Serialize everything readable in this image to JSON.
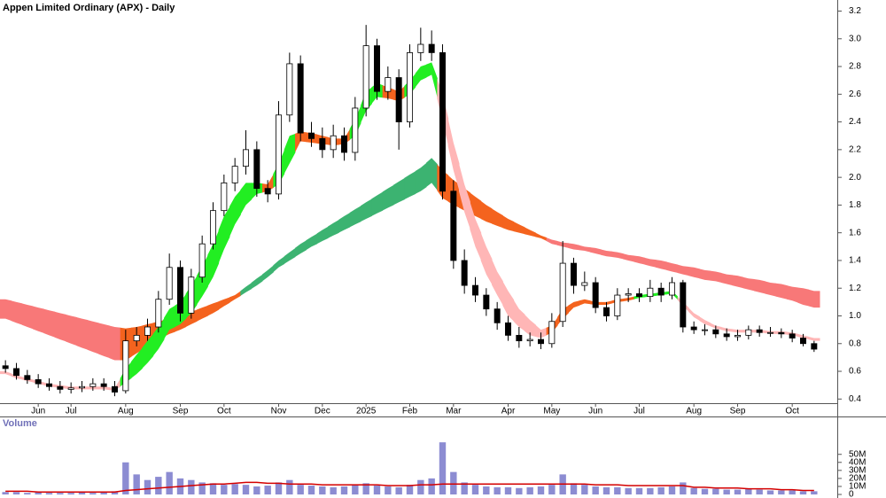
{
  "chart_data": [
    {
      "type": "candlestick",
      "title": "Appen Limited Ordinary (APX) - Daily",
      "categories": [
        null,
        null,
        null,
        "Jun",
        null,
        null,
        "Jul",
        null,
        null,
        null,
        null,
        "Aug",
        null,
        null,
        null,
        null,
        "Sep",
        null,
        null,
        null,
        "Oct",
        null,
        null,
        null,
        null,
        "Nov",
        null,
        null,
        null,
        "Dec",
        null,
        null,
        null,
        "2025",
        null,
        null,
        null,
        "Feb",
        null,
        null,
        null,
        "Mar",
        null,
        null,
        null,
        null,
        "Apr",
        null,
        null,
        null,
        "May",
        null,
        null,
        null,
        "Jun",
        null,
        null,
        null,
        "Jul",
        null,
        null,
        null,
        null,
        "Aug",
        null,
        null,
        null,
        "Sep",
        null,
        null,
        null,
        null,
        "Oct",
        null,
        null
      ],
      "open": [
        0.64,
        0.62,
        0.57,
        0.54,
        0.51,
        0.49,
        0.47,
        0.48,
        0.49,
        0.51,
        0.49,
        0.46,
        0.82,
        0.86,
        0.92,
        1.12,
        1.35,
        1.02,
        1.28,
        1.52,
        1.76,
        1.96,
        2.08,
        2.2,
        1.92,
        1.88,
        2.45,
        2.82,
        2.32,
        2.28,
        2.2,
        2.3,
        2.18,
        2.5,
        2.95,
        2.62,
        2.72,
        2.4,
        2.9,
        2.96,
        2.9,
        1.9,
        1.4,
        1.22,
        1.15,
        1.05,
        0.95,
        0.86,
        0.82,
        0.83,
        0.8,
        0.96,
        1.38,
        1.22,
        1.24,
        1.06,
        1.0,
        1.15,
        1.16,
        1.14,
        1.2,
        1.15,
        1.24,
        0.92,
        0.9,
        0.9,
        0.87,
        0.85,
        0.86,
        0.9,
        0.88,
        0.88,
        0.87,
        0.84,
        0.8
      ],
      "high": [
        0.68,
        0.66,
        0.61,
        0.58,
        0.55,
        0.53,
        0.52,
        0.53,
        0.55,
        0.55,
        0.53,
        0.9,
        0.92,
        0.98,
        1.18,
        1.45,
        1.4,
        1.34,
        1.58,
        1.82,
        2.02,
        2.14,
        2.34,
        2.26,
        1.98,
        2.55,
        2.9,
        2.88,
        2.4,
        2.36,
        2.38,
        2.36,
        2.58,
        3.1,
        3.0,
        2.8,
        2.78,
        2.96,
        3.08,
        3.06,
        2.96,
        1.98,
        1.48,
        1.28,
        1.2,
        1.1,
        1.0,
        0.92,
        0.88,
        0.88,
        1.02,
        1.54,
        1.42,
        1.32,
        1.28,
        1.1,
        1.2,
        1.2,
        1.2,
        1.26,
        1.24,
        1.28,
        1.26,
        0.96,
        0.94,
        0.93,
        0.91,
        0.9,
        0.93,
        0.93,
        0.92,
        0.91,
        0.9,
        0.87,
        0.82
      ],
      "low": [
        0.59,
        0.54,
        0.51,
        0.48,
        0.46,
        0.44,
        0.44,
        0.45,
        0.46,
        0.46,
        0.42,
        0.44,
        0.78,
        0.82,
        0.88,
        1.08,
        0.96,
        0.98,
        1.24,
        1.48,
        1.72,
        1.9,
        2.02,
        1.86,
        1.82,
        1.84,
        2.4,
        2.26,
        2.22,
        2.14,
        2.14,
        2.12,
        2.12,
        2.44,
        2.56,
        2.56,
        2.2,
        2.36,
        2.84,
        2.84,
        1.84,
        1.34,
        1.16,
        1.1,
        1.0,
        0.9,
        0.82,
        0.77,
        0.78,
        0.76,
        0.77,
        0.92,
        1.16,
        1.18,
        1.02,
        0.96,
        0.97,
        1.1,
        1.1,
        1.1,
        1.1,
        1.12,
        0.88,
        0.87,
        0.86,
        0.84,
        0.82,
        0.82,
        0.83,
        0.85,
        0.85,
        0.84,
        0.81,
        0.78,
        0.74
      ],
      "close": [
        0.62,
        0.57,
        0.54,
        0.51,
        0.49,
        0.47,
        0.48,
        0.49,
        0.51,
        0.49,
        0.45,
        0.82,
        0.86,
        0.92,
        1.12,
        1.35,
        1.02,
        1.28,
        1.52,
        1.76,
        1.96,
        2.08,
        2.2,
        1.92,
        1.88,
        2.45,
        2.82,
        2.32,
        2.28,
        2.2,
        2.3,
        2.18,
        2.5,
        2.95,
        2.62,
        2.72,
        2.4,
        2.9,
        2.96,
        2.9,
        1.9,
        1.4,
        1.22,
        1.15,
        1.05,
        0.95,
        0.86,
        0.82,
        0.83,
        0.8,
        0.96,
        1.38,
        1.22,
        1.24,
        1.06,
        1.0,
        1.15,
        1.16,
        1.14,
        1.2,
        1.15,
        1.24,
        0.92,
        0.9,
        0.9,
        0.87,
        0.85,
        0.86,
        0.9,
        0.88,
        0.88,
        0.87,
        0.84,
        0.8,
        0.76
      ],
      "ribbons": [
        {
          "upper": [
            1.12,
            1.1,
            1.08,
            1.06,
            1.04,
            1.02,
            1.0,
            0.98,
            0.96,
            0.94,
            0.92,
            0.91,
            0.92,
            0.94,
            0.96,
            0.98,
            1.0,
            1.03,
            1.06,
            1.09,
            1.12,
            1.15,
            1.21,
            1.27,
            1.33,
            1.4,
            1.46,
            1.52,
            1.57,
            1.62,
            1.67,
            1.72,
            1.77,
            1.82,
            1.87,
            1.92,
            1.97,
            2.02,
            2.07,
            2.14,
            2.05,
            1.98,
            1.92,
            1.86,
            1.8,
            1.75,
            1.7,
            1.66,
            1.62,
            1.58,
            1.55,
            1.53,
            1.52,
            1.5,
            1.49,
            1.47,
            1.46,
            1.44,
            1.43,
            1.41,
            1.4,
            1.38,
            1.36,
            1.35,
            1.33,
            1.32,
            1.3,
            1.29,
            1.27,
            1.26,
            1.24,
            1.23,
            1.21,
            1.2,
            1.18
          ],
          "lower": [
            0.98,
            0.95,
            0.92,
            0.89,
            0.86,
            0.83,
            0.8,
            0.77,
            0.74,
            0.71,
            0.68,
            0.68,
            0.73,
            0.78,
            0.83,
            0.87,
            0.9,
            0.94,
            0.98,
            1.02,
            1.07,
            1.12,
            1.17,
            1.22,
            1.28,
            1.35,
            1.4,
            1.45,
            1.5,
            1.54,
            1.58,
            1.62,
            1.66,
            1.7,
            1.74,
            1.78,
            1.82,
            1.86,
            1.9,
            1.96,
            1.85,
            1.8,
            1.76,
            1.72,
            1.68,
            1.65,
            1.62,
            1.6,
            1.58,
            1.56,
            1.52,
            1.5,
            1.48,
            1.47,
            1.45,
            1.43,
            1.42,
            1.4,
            1.38,
            1.36,
            1.34,
            1.32,
            1.3,
            1.28,
            1.26,
            1.25,
            1.23,
            1.21,
            1.19,
            1.17,
            1.15,
            1.13,
            1.11,
            1.08,
            1.06
          ],
          "colors": [
            "#f87878",
            "#f87878",
            "#f87878",
            "#f87878",
            "#f87878",
            "#f87878",
            "#f87878",
            "#f87878",
            "#f87878",
            "#f87878",
            "#f87878",
            "#f4631e",
            "#f4631e",
            "#f4631e",
            "#f4631e",
            "#f4631e",
            "#f4631e",
            "#f4631e",
            "#f4631e",
            "#f4631e",
            "#f4631e",
            "#f4631e",
            "#3cb371",
            "#3cb371",
            "#3cb371",
            "#3cb371",
            "#3cb371",
            "#3cb371",
            "#3cb371",
            "#3cb371",
            "#3cb371",
            "#3cb371",
            "#3cb371",
            "#3cb371",
            "#3cb371",
            "#3cb371",
            "#3cb371",
            "#3cb371",
            "#3cb371",
            "#3cb371",
            "#f4631e",
            "#f4631e",
            "#f4631e",
            "#f4631e",
            "#f4631e",
            "#f4631e",
            "#f4631e",
            "#f4631e",
            "#f4631e",
            "#f4631e",
            "#f87878",
            "#f87878",
            "#f87878",
            "#f87878",
            "#f87878",
            "#f87878",
            "#f87878",
            "#f87878",
            "#f87878",
            "#f87878",
            "#f87878",
            "#f87878",
            "#f87878",
            "#f87878",
            "#f87878",
            "#f87878",
            "#f87878",
            "#f87878",
            "#f87878",
            "#f87878",
            "#f87878",
            "#f87878",
            "#f87878",
            "#f87878",
            "#f87878"
          ]
        },
        {
          "upper": [
            0.6,
            0.57,
            0.55,
            0.53,
            0.51,
            0.5,
            0.49,
            0.49,
            0.49,
            0.49,
            0.48,
            0.62,
            0.72,
            0.82,
            0.92,
            1.05,
            1.1,
            1.22,
            1.36,
            1.52,
            1.72,
            1.86,
            1.96,
            1.96,
            1.95,
            2.1,
            2.3,
            2.33,
            2.32,
            2.3,
            2.28,
            2.28,
            2.42,
            2.62,
            2.68,
            2.65,
            2.62,
            2.7,
            2.8,
            2.83,
            2.6,
            2.25,
            1.95,
            1.7,
            1.5,
            1.32,
            1.18,
            1.05,
            0.97,
            0.9,
            0.93,
            1.05,
            1.1,
            1.12,
            1.1,
            1.1,
            1.12,
            1.13,
            1.15,
            1.16,
            1.17,
            1.18,
            1.1,
            1.02,
            0.97,
            0.93,
            0.91,
            0.9,
            0.9,
            0.9,
            0.89,
            0.89,
            0.88,
            0.86,
            0.84
          ],
          "lower": [
            0.58,
            0.55,
            0.53,
            0.51,
            0.49,
            0.48,
            0.47,
            0.47,
            0.47,
            0.47,
            0.46,
            0.52,
            0.58,
            0.66,
            0.76,
            0.9,
            0.94,
            1.02,
            1.14,
            1.28,
            1.48,
            1.66,
            1.8,
            1.88,
            1.9,
            1.95,
            2.1,
            2.26,
            2.25,
            2.24,
            2.23,
            2.24,
            2.3,
            2.48,
            2.58,
            2.57,
            2.55,
            2.6,
            2.7,
            2.74,
            2.4,
            2.05,
            1.75,
            1.5,
            1.3,
            1.15,
            1.0,
            0.92,
            0.86,
            0.84,
            0.88,
            0.98,
            1.06,
            1.09,
            1.08,
            1.08,
            1.1,
            1.11,
            1.13,
            1.14,
            1.15,
            1.16,
            1.07,
            0.99,
            0.94,
            0.91,
            0.89,
            0.88,
            0.88,
            0.88,
            0.87,
            0.87,
            0.86,
            0.84,
            0.82
          ],
          "colors": [
            "#ffb6b6",
            "#ffb6b6",
            "#ffb6b6",
            "#ffb6b6",
            "#ffb6b6",
            "#ffb6b6",
            "#ffb6b6",
            "#ffb6b6",
            "#ffb6b6",
            "#ffb6b6",
            "#ffb6b6",
            "#22ee22",
            "#22ee22",
            "#22ee22",
            "#22ee22",
            "#22ee22",
            "#22ee22",
            "#22ee22",
            "#22ee22",
            "#22ee22",
            "#22ee22",
            "#22ee22",
            "#22ee22",
            "#22ee22",
            "#f4631e",
            "#22ee22",
            "#22ee22",
            "#f4631e",
            "#f4631e",
            "#f4631e",
            "#f4631e",
            "#f4631e",
            "#22ee22",
            "#22ee22",
            "#22ee22",
            "#f4631e",
            "#f4631e",
            "#22ee22",
            "#22ee22",
            "#22ee22",
            "#ffb6b6",
            "#ffb6b6",
            "#ffb6b6",
            "#ffb6b6",
            "#ffb6b6",
            "#ffb6b6",
            "#ffb6b6",
            "#ffb6b6",
            "#ffb6b6",
            "#ffb6b6",
            "#f4631e",
            "#f4631e",
            "#f4631e",
            "#f4631e",
            "#f4631e",
            "#f4631e",
            "#f4631e",
            "#f4631e",
            "#22ee22",
            "#22ee22",
            "#22ee22",
            "#22ee22",
            "#ffb6b6",
            "#ffb6b6",
            "#ffb6b6",
            "#ffb6b6",
            "#ffb6b6",
            "#ffb6b6",
            "#ffb6b6",
            "#ffb6b6",
            "#ffb6b6",
            "#ffb6b6",
            "#ffb6b6",
            "#ffb6b6",
            "#ffb6b6"
          ]
        }
      ],
      "ylim": [
        0.37,
        3.28
      ],
      "yticks": [
        0.4,
        0.6,
        0.8,
        {
          "value": 1,
          "label": "1.0"
        },
        1.2,
        1.4,
        1.6,
        1.8,
        {
          "value": 2,
          "label": "2.0"
        },
        2.2,
        2.4,
        2.6,
        2.8,
        {
          "value": 3,
          "label": "3.0"
        },
        3.2
      ]
    },
    {
      "type": "bar",
      "title": "Volume",
      "color": "#8c8cd2",
      "values": [
        3000000,
        3000000,
        2000000,
        3000000,
        2000000,
        2000000,
        2000000,
        3000000,
        2000000,
        3000000,
        4000000,
        40000000,
        25000000,
        18000000,
        22000000,
        28000000,
        20000000,
        18000000,
        15000000,
        14000000,
        12000000,
        13000000,
        12000000,
        10000000,
        11000000,
        15000000,
        18000000,
        12000000,
        11000000,
        10000000,
        9000000,
        10000000,
        12000000,
        14000000,
        11000000,
        10000000,
        9000000,
        12000000,
        18000000,
        20000000,
        65000000,
        28000000,
        15000000,
        12000000,
        10000000,
        9000000,
        9000000,
        8000000,
        9000000,
        10000000,
        12000000,
        25000000,
        14000000,
        12000000,
        10000000,
        9000000,
        9000000,
        8000000,
        8000000,
        8000000,
        9000000,
        10000000,
        15000000,
        8000000,
        7000000,
        7000000,
        6000000,
        6000000,
        7000000,
        6000000,
        5000000,
        5000000,
        5000000,
        4000000,
        4000000
      ],
      "line": {
        "color": "#d40000",
        "values": [
          4000000,
          4000000,
          4000000,
          3000000,
          3000000,
          3000000,
          3000000,
          3000000,
          3000000,
          3000000,
          3000000,
          5000000,
          6000000,
          7000000,
          8000000,
          9000000,
          10000000,
          11000000,
          12000000,
          13000000,
          13000000,
          14000000,
          15000000,
          15000000,
          14000000,
          14000000,
          13000000,
          13000000,
          13000000,
          12000000,
          12000000,
          12000000,
          12000000,
          12000000,
          12000000,
          11000000,
          11000000,
          11000000,
          12000000,
          12000000,
          13000000,
          13000000,
          13000000,
          13000000,
          13000000,
          13000000,
          13000000,
          13000000,
          13000000,
          13000000,
          13000000,
          13000000,
          13000000,
          13000000,
          12000000,
          12000000,
          12000000,
          11000000,
          11000000,
          11000000,
          11000000,
          11000000,
          11000000,
          9000000,
          9000000,
          8000000,
          8000000,
          8000000,
          7000000,
          7000000,
          7000000,
          6000000,
          6000000,
          5000000,
          5000000
        ]
      },
      "ylim": [
        0,
        95000000
      ],
      "yticks": [
        0,
        {
          "value": 10000000,
          "label": "10M"
        },
        {
          "value": 20000000,
          "label": "20M"
        },
        {
          "value": 30000000,
          "label": "30M"
        },
        {
          "value": 40000000,
          "label": "40M"
        },
        {
          "value": 50000000,
          "label": "50M"
        }
      ]
    }
  ]
}
